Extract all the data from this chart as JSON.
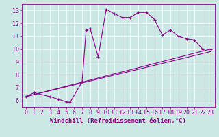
{
  "xlabel": "Windchill (Refroidissement éolien,°C)",
  "bg_color": "#cce8e4",
  "line_color": "#880088",
  "xlim": [
    -0.5,
    23.5
  ],
  "ylim": [
    5.5,
    13.5
  ],
  "yticks": [
    6,
    7,
    8,
    9,
    10,
    11,
    12,
    13
  ],
  "xticks": [
    0,
    1,
    2,
    3,
    4,
    5,
    6,
    7,
    8,
    9,
    10,
    11,
    12,
    13,
    14,
    15,
    16,
    17,
    18,
    19,
    20,
    21,
    22,
    23
  ],
  "line1_x": [
    0,
    1,
    3,
    4,
    5,
    5.5,
    7,
    7.5,
    8,
    9,
    10,
    11,
    12,
    13,
    14,
    15,
    16,
    17,
    18,
    19,
    20,
    21,
    22,
    23
  ],
  "line1_y": [
    6.3,
    6.6,
    6.3,
    6.1,
    5.9,
    5.85,
    7.45,
    11.45,
    11.6,
    9.4,
    13.1,
    12.75,
    12.45,
    12.45,
    12.85,
    12.85,
    12.3,
    11.1,
    11.5,
    11.0,
    10.8,
    10.7,
    10.0,
    10.0
  ],
  "line2_x": [
    0,
    23
  ],
  "line2_y": [
    6.3,
    9.8
  ],
  "line3_x": [
    0,
    23
  ],
  "line3_y": [
    6.3,
    10.0
  ],
  "grid_color": "#ffffff",
  "tick_fontsize": 6,
  "xlabel_fontsize": 6.5
}
